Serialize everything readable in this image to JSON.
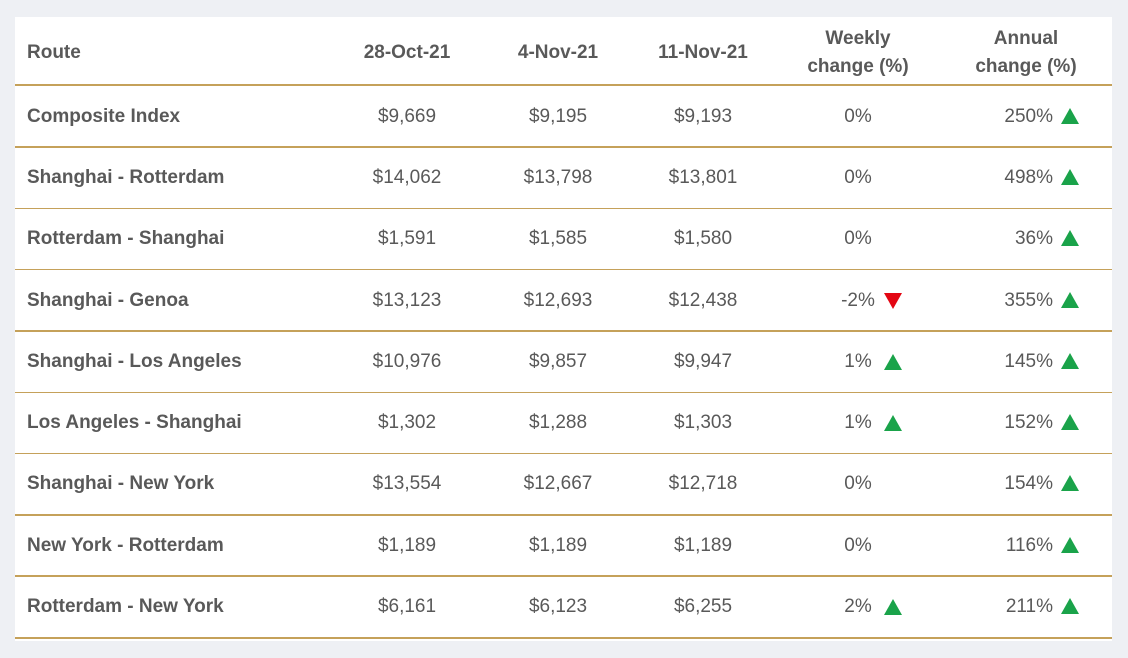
{
  "table": {
    "columns": [
      "Route",
      "28-Oct-21",
      "4-Nov-21",
      "11-Nov-21",
      "Weekly change (%)",
      "Annual change (%)"
    ],
    "rows": [
      [
        "Composite Index",
        "$9,669",
        "$9,195",
        "$9,193",
        "0%",
        "250%"
      ],
      [
        "Shanghai - Rotterdam",
        "$14,062",
        "$13,798",
        "$13,801",
        "0%",
        "498%"
      ],
      [
        "Rotterdam - Shanghai",
        "$1,591",
        "$1,585",
        "$1,580",
        "0%",
        "36%"
      ],
      [
        "Shanghai - Genoa",
        "$13,123",
        "$12,693",
        "$12,438",
        "-2%",
        "355%"
      ],
      [
        "Shanghai - Los Angeles",
        "$10,976",
        "$9,857",
        "$9,947",
        "1%",
        "145%"
      ],
      [
        "Los Angeles - Shanghai",
        "$1,302",
        "$1,288",
        "$1,303",
        "1%",
        "152%"
      ],
      [
        "Shanghai - New York",
        "$13,554",
        "$12,667",
        "$12,718",
        "0%",
        "154%"
      ],
      [
        "New York - Rotterdam",
        "$1,189",
        "$1,189",
        "$1,189",
        "0%",
        "116%"
      ],
      [
        "Rotterdam - New York",
        "$6,161",
        "$6,123",
        "$6,255",
        "2%",
        "211%"
      ]
    ]
  }
}
